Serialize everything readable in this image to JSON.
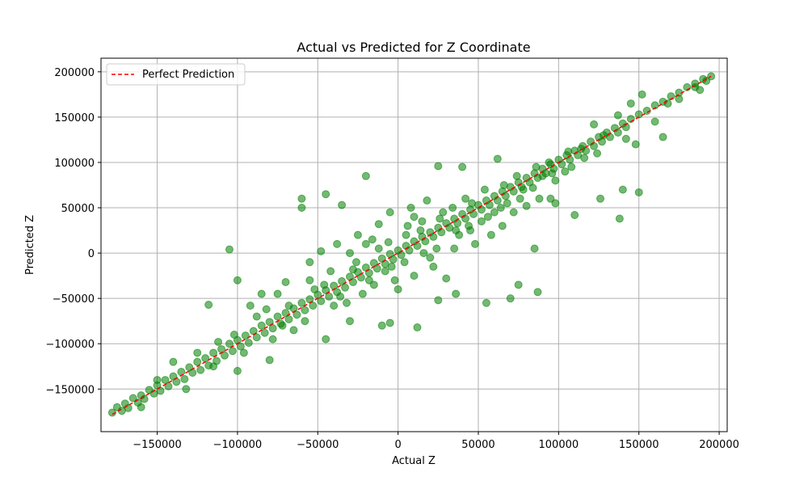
{
  "chart_data": {
    "type": "scatter",
    "title": "Actual vs Predicted for Z Coordinate",
    "xlabel": "Actual Z",
    "ylabel": "Predicted Z",
    "xlim": [
      -185000,
      205000
    ],
    "ylim": [
      -197000,
      215000
    ],
    "xticks": [
      -150000,
      -100000,
      -50000,
      0,
      50000,
      100000,
      150000,
      200000
    ],
    "xtick_labels": [
      "−150000",
      "−100000",
      "−50000",
      "0",
      "50000",
      "100000",
      "150000",
      "200000"
    ],
    "yticks": [
      -150000,
      -100000,
      -50000,
      0,
      50000,
      100000,
      150000,
      200000
    ],
    "ytick_labels": [
      "−150000",
      "−100000",
      "−50000",
      "0",
      "50000",
      "100000",
      "150000",
      "200000"
    ],
    "grid": true,
    "legend": {
      "position": "upper-left",
      "entries": [
        "Perfect Prediction"
      ]
    },
    "series": [
      {
        "kind": "scatter",
        "color": "#008000",
        "alpha": 0.55,
        "points": [
          [
            -178000,
            -176000
          ],
          [
            -175000,
            -170000
          ],
          [
            -172000,
            -174000
          ],
          [
            -170000,
            -166000
          ],
          [
            -168000,
            -171000
          ],
          [
            -165000,
            -160000
          ],
          [
            -162000,
            -165000
          ],
          [
            -160000,
            -157000
          ],
          [
            -158000,
            -161000
          ],
          [
            -155000,
            -151000
          ],
          [
            -152000,
            -155000
          ],
          [
            -150000,
            -146000
          ],
          [
            -148000,
            -152000
          ],
          [
            -145000,
            -140000
          ],
          [
            -143000,
            -147000
          ],
          [
            -140000,
            -136000
          ],
          [
            -138000,
            -142000
          ],
          [
            -135000,
            -131000
          ],
          [
            -133000,
            -139000
          ],
          [
            -130000,
            -126000
          ],
          [
            -128000,
            -132000
          ],
          [
            -125000,
            -120000
          ],
          [
            -123000,
            -129000
          ],
          [
            -120000,
            -116000
          ],
          [
            -118000,
            -124000
          ],
          [
            -115000,
            -110000
          ],
          [
            -113000,
            -119000
          ],
          [
            -110000,
            -106000
          ],
          [
            -108000,
            -113000
          ],
          [
            -105000,
            -100000
          ],
          [
            -103000,
            -108000
          ],
          [
            -100000,
            -96000
          ],
          [
            -98000,
            -103000
          ],
          [
            -95000,
            -91000
          ],
          [
            -93000,
            -99000
          ],
          [
            -90000,
            -86000
          ],
          [
            -88000,
            -93000
          ],
          [
            -85000,
            -80000
          ],
          [
            -83000,
            -88000
          ],
          [
            -80000,
            -76000
          ],
          [
            -78000,
            -83000
          ],
          [
            -75000,
            -70000
          ],
          [
            -73000,
            -78000
          ],
          [
            -70000,
            -66000
          ],
          [
            -68000,
            -73000
          ],
          [
            -65000,
            -61000
          ],
          [
            -63000,
            -68000
          ],
          [
            -60000,
            -55000
          ],
          [
            -58000,
            -63000
          ],
          [
            -55000,
            -51000
          ],
          [
            -53000,
            -58000
          ],
          [
            -50000,
            -46000
          ],
          [
            -48000,
            -53000
          ],
          [
            -45000,
            -41000
          ],
          [
            -43000,
            -48000
          ],
          [
            -40000,
            -36000
          ],
          [
            -38000,
            -43000
          ],
          [
            -35000,
            -31000
          ],
          [
            -33000,
            -38000
          ],
          [
            -30000,
            -26000
          ],
          [
            -28000,
            -32000
          ],
          [
            -25000,
            -21000
          ],
          [
            -23000,
            -27000
          ],
          [
            -20000,
            -16000
          ],
          [
            -18000,
            -22000
          ],
          [
            -15000,
            -11000
          ],
          [
            -13000,
            -17000
          ],
          [
            -10000,
            -6000
          ],
          [
            -8000,
            -12000
          ],
          [
            -5000,
            -1000
          ],
          [
            -3000,
            -7000
          ],
          [
            0,
            3000
          ],
          [
            2000,
            -2000
          ],
          [
            5000,
            8000
          ],
          [
            7000,
            3000
          ],
          [
            10000,
            13000
          ],
          [
            12000,
            8000
          ],
          [
            15000,
            18000
          ],
          [
            17000,
            13000
          ],
          [
            20000,
            23000
          ],
          [
            22000,
            18000
          ],
          [
            25000,
            28000
          ],
          [
            27000,
            23000
          ],
          [
            30000,
            33000
          ],
          [
            32000,
            28000
          ],
          [
            35000,
            38000
          ],
          [
            37000,
            33000
          ],
          [
            40000,
            43000
          ],
          [
            42000,
            38000
          ],
          [
            45000,
            48000
          ],
          [
            47000,
            43000
          ],
          [
            50000,
            53000
          ],
          [
            52000,
            48000
          ],
          [
            55000,
            58000
          ],
          [
            57000,
            53000
          ],
          [
            60000,
            63000
          ],
          [
            62000,
            58000
          ],
          [
            65000,
            68000
          ],
          [
            67000,
            63000
          ],
          [
            70000,
            73000
          ],
          [
            72000,
            68000
          ],
          [
            75000,
            78000
          ],
          [
            77000,
            73000
          ],
          [
            80000,
            83000
          ],
          [
            82000,
            78000
          ],
          [
            85000,
            88000
          ],
          [
            87000,
            83000
          ],
          [
            90000,
            93000
          ],
          [
            92000,
            88000
          ],
          [
            95000,
            98000
          ],
          [
            97000,
            93000
          ],
          [
            100000,
            103000
          ],
          [
            102000,
            98000
          ],
          [
            105000,
            108000
          ],
          [
            107000,
            103000
          ],
          [
            110000,
            113000
          ],
          [
            112000,
            108000
          ],
          [
            115000,
            118000
          ],
          [
            117000,
            113000
          ],
          [
            120000,
            123000
          ],
          [
            122000,
            118000
          ],
          [
            125000,
            128000
          ],
          [
            127000,
            123000
          ],
          [
            130000,
            133000
          ],
          [
            132000,
            128000
          ],
          [
            135000,
            138000
          ],
          [
            137000,
            133000
          ],
          [
            140000,
            143000
          ],
          [
            142000,
            139000
          ],
          [
            145000,
            148000
          ],
          [
            150000,
            153000
          ],
          [
            155000,
            157000
          ],
          [
            160000,
            163000
          ],
          [
            165000,
            167000
          ],
          [
            170000,
            173000
          ],
          [
            175000,
            177000
          ],
          [
            180000,
            183000
          ],
          [
            185000,
            187000
          ],
          [
            190000,
            192000
          ],
          [
            195000,
            195000
          ],
          [
            -20000,
            85000
          ],
          [
            -45000,
            65000
          ],
          [
            -60000,
            60000
          ],
          [
            -60000,
            50000
          ],
          [
            -35000,
            53000
          ],
          [
            25000,
            96000
          ],
          [
            40000,
            95000
          ],
          [
            62000,
            104000
          ],
          [
            -100000,
            -30000
          ],
          [
            -105000,
            4000
          ],
          [
            12000,
            -82000
          ],
          [
            -5000,
            -77000
          ],
          [
            -10000,
            -80000
          ],
          [
            -100000,
            -130000
          ],
          [
            -140000,
            -120000
          ],
          [
            -30000,
            -75000
          ],
          [
            -45000,
            -95000
          ],
          [
            -80000,
            -118000
          ],
          [
            55000,
            -55000
          ],
          [
            70000,
            -50000
          ],
          [
            75000,
            -35000
          ],
          [
            87000,
            -43000
          ],
          [
            85000,
            5000
          ],
          [
            36000,
            -45000
          ],
          [
            25000,
            -52000
          ],
          [
            95000,
            60000
          ],
          [
            98000,
            55000
          ],
          [
            110000,
            42000
          ],
          [
            126000,
            60000
          ],
          [
            138000,
            38000
          ],
          [
            140000,
            70000
          ],
          [
            150000,
            67000
          ],
          [
            165000,
            128000
          ],
          [
            137000,
            152000
          ],
          [
            122000,
            142000
          ],
          [
            145000,
            165000
          ],
          [
            160000,
            145000
          ],
          [
            148000,
            120000
          ],
          [
            142000,
            126000
          ],
          [
            152000,
            175000
          ],
          [
            168000,
            165000
          ],
          [
            175000,
            170000
          ],
          [
            185000,
            183000
          ],
          [
            188000,
            180000
          ],
          [
            192000,
            190000
          ],
          [
            -118000,
            -57000
          ],
          [
            -92000,
            -58000
          ],
          [
            -85000,
            -45000
          ],
          [
            -70000,
            -32000
          ],
          [
            -55000,
            -10000
          ],
          [
            -48000,
            2000
          ],
          [
            -38000,
            10000
          ],
          [
            -25000,
            20000
          ],
          [
            -12000,
            32000
          ],
          [
            -5000,
            45000
          ],
          [
            8000,
            50000
          ],
          [
            18000,
            58000
          ],
          [
            -8000,
            -20000
          ],
          [
            -2000,
            -30000
          ],
          [
            10000,
            -25000
          ],
          [
            22000,
            -15000
          ],
          [
            30000,
            -28000
          ],
          [
            35000,
            5000
          ],
          [
            45000,
            25000
          ],
          [
            48000,
            10000
          ],
          [
            58000,
            20000
          ],
          [
            65000,
            30000
          ],
          [
            72000,
            45000
          ],
          [
            80000,
            52000
          ],
          [
            88000,
            60000
          ],
          [
            -30000,
            0
          ],
          [
            -20000,
            10000
          ],
          [
            -15000,
            -35000
          ],
          [
            5000,
            20000
          ],
          [
            15000,
            35000
          ],
          [
            -75000,
            -45000
          ],
          [
            -65000,
            -85000
          ],
          [
            -55000,
            -30000
          ],
          [
            -42000,
            -20000
          ],
          [
            -32000,
            -55000
          ],
          [
            -22000,
            -45000
          ],
          [
            -12000,
            5000
          ],
          [
            0,
            -40000
          ],
          [
            10000,
            40000
          ],
          [
            20000,
            -5000
          ],
          [
            28000,
            45000
          ],
          [
            38000,
            20000
          ],
          [
            42000,
            60000
          ],
          [
            52000,
            35000
          ],
          [
            60000,
            45000
          ],
          [
            68000,
            55000
          ],
          [
            78000,
            70000
          ],
          [
            90000,
            85000
          ],
          [
            98000,
            80000
          ],
          [
            108000,
            95000
          ],
          [
            -125000,
            -110000
          ],
          [
            -112000,
            -98000
          ],
          [
            -96000,
            -110000
          ],
          [
            -88000,
            -70000
          ],
          [
            -78000,
            -95000
          ],
          [
            -68000,
            -58000
          ],
          [
            -58000,
            -75000
          ],
          [
            -46000,
            -35000
          ],
          [
            -36000,
            -48000
          ],
          [
            -26000,
            -10000
          ],
          [
            -18000,
            -30000
          ],
          [
            -6000,
            12000
          ],
          [
            4000,
            -10000
          ],
          [
            14000,
            25000
          ],
          [
            24000,
            5000
          ],
          [
            34000,
            50000
          ],
          [
            44000,
            30000
          ],
          [
            54000,
            70000
          ],
          [
            64000,
            50000
          ],
          [
            74000,
            85000
          ],
          [
            84000,
            72000
          ],
          [
            94000,
            100000
          ],
          [
            104000,
            90000
          ],
          [
            114000,
            115000
          ],
          [
            124000,
            110000
          ],
          [
            -160000,
            -170000
          ],
          [
            -150000,
            -140000
          ],
          [
            -132000,
            -150000
          ],
          [
            -115000,
            -125000
          ],
          [
            -102000,
            -90000
          ],
          [
            -82000,
            -62000
          ],
          [
            -72000,
            -80000
          ],
          [
            -52000,
            -40000
          ],
          [
            -40000,
            -58000
          ],
          [
            -28000,
            -18000
          ],
          [
            -16000,
            15000
          ],
          [
            -4000,
            -15000
          ],
          [
            6000,
            30000
          ],
          [
            16000,
            0
          ],
          [
            26000,
            38000
          ],
          [
            36000,
            25000
          ],
          [
            46000,
            55000
          ],
          [
            56000,
            40000
          ],
          [
            66000,
            75000
          ],
          [
            76000,
            60000
          ],
          [
            86000,
            95000
          ],
          [
            96000,
            88000
          ],
          [
            106000,
            112000
          ],
          [
            116000,
            105000
          ],
          [
            128000,
            130000
          ]
        ]
      }
    ],
    "reference_line": {
      "name": "Perfect Prediction",
      "from": [
        -178000,
        -178000
      ],
      "to": [
        195000,
        195000
      ],
      "color": "#ff0000",
      "dash": "dashed"
    }
  }
}
